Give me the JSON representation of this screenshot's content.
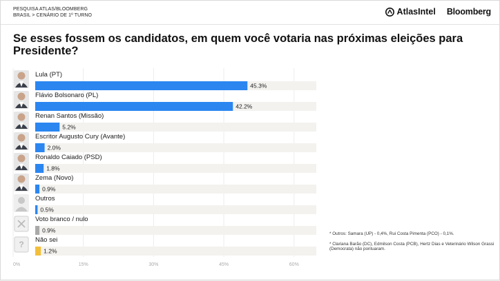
{
  "header": {
    "kicker_line1": "PESQUISA ATLAS/BLOOMBERG",
    "kicker_line2": "BRASIL > CENÁRIO DE 1º TURNO",
    "atlas_logo_text": "AtlasIntel",
    "bloomberg_logo_text": "Bloomberg"
  },
  "question": "Se esses fossem os candidatos, em quem você votaria nas próximas eleições para Presidente?",
  "chart_data": {
    "type": "bar",
    "orientation": "horizontal",
    "categories": [
      "Lula (PT)",
      "Flávio Bolsonaro (PL)",
      "Renan Santos (Missão)",
      "Escritor Augusto Cury (Avante)",
      "Ronaldo Caiado (PSD)",
      "Zema (Novo)",
      "Outros",
      "Voto branco / nulo",
      "Não sei"
    ],
    "values": [
      45.3,
      42.2,
      5.2,
      2.0,
      1.8,
      0.9,
      0.5,
      0.9,
      1.2
    ],
    "value_labels": [
      "45.3%",
      "42.2%",
      "5.2%",
      "2.0%",
      "1.8%",
      "0.9%",
      "0.5%",
      "0.9%",
      "1.2%"
    ],
    "bar_colors": [
      "#2b86f0",
      "#2b86f0",
      "#2b86f0",
      "#2b86f0",
      "#2b86f0",
      "#2b86f0",
      "#2b86f0",
      "#a9a9a9",
      "#f2bf3a"
    ],
    "avatar_icons": [
      "person-photo-icon",
      "person-photo-icon",
      "person-photo-icon",
      "person-photo-icon",
      "person-photo-icon",
      "person-photo-icon",
      "generic-person-icon",
      "blank-vote-icon",
      "question-mark-icon"
    ],
    "x_ticks": [
      0,
      15,
      30,
      45,
      60
    ],
    "x_tick_labels": [
      "0%",
      "15%",
      "30%",
      "45%",
      "60%"
    ],
    "xlim": [
      0,
      60
    ],
    "track_max": 60,
    "grid": true,
    "title": "",
    "xlabel": "",
    "ylabel": ""
  },
  "notes": [
    "* Outros: Samara (UP) - 0,4%, Rui Costa Pimenta (PCO) - 0,1%.",
    "* Clariana Barão (DC), Edmilson Costa (PCB), Hertz Dias e Veterinário Wilson Grassi (Democrata) não pontuaram."
  ],
  "colors": {
    "primary_bar": "#2b86f0",
    "blank_null_bar": "#a9a9a9",
    "dont_know_bar": "#f2bf3a",
    "track": "#f3f2ef"
  }
}
